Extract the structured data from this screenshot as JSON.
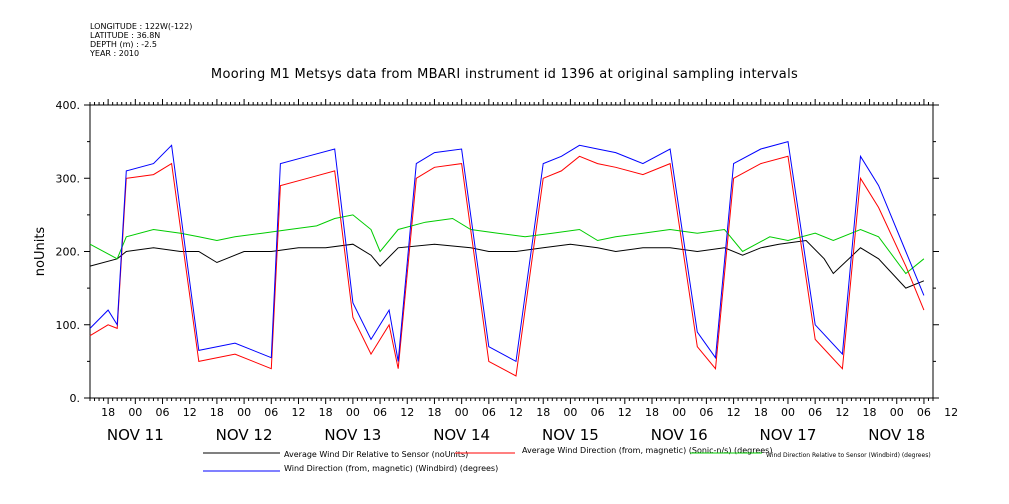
{
  "header": {
    "longitude": "LONGITUDE : 122W(-122)",
    "latitude": "LATITUDE : 36.8N",
    "depth": "DEPTH (m) : -2.5",
    "year": "YEAR : 2010"
  },
  "chart_data": {
    "type": "line",
    "title": "Mooring M1 Metsys data from MBARI instrument id 1396 at original sampling intervals",
    "ylabel": "noUnits",
    "xlabel": "",
    "ylim": [
      0,
      400
    ],
    "y_ticks": [
      "0.",
      "100.",
      "200.",
      "300.",
      "400."
    ],
    "x_range_hours": [
      -4,
      182
    ],
    "hour_tick_labels": [
      "18",
      "00",
      "06",
      "12",
      "18",
      "00",
      "06",
      "12",
      "18",
      "00",
      "06",
      "12",
      "18",
      "00",
      "06",
      "12",
      "18",
      "00",
      "06",
      "12",
      "18",
      "00",
      "06",
      "12",
      "18",
      "00",
      "06",
      "12",
      "18",
      "00",
      "06",
      "12"
    ],
    "day_labels": [
      "NOV 11",
      "NOV 12",
      "NOV 13",
      "NOV 14",
      "NOV 15",
      "NOV 16",
      "NOV 17",
      "NOV 18"
    ],
    "grid": false,
    "legend_placement": "bottom",
    "series": [
      {
        "name": "Average Wind Dir Relative to Sensor (noUnits)",
        "color": "#000000",
        "points": [
          [
            -4,
            180
          ],
          [
            2,
            190
          ],
          [
            4,
            200
          ],
          [
            10,
            205
          ],
          [
            16,
            200
          ],
          [
            20,
            200
          ],
          [
            24,
            185
          ],
          [
            26,
            190
          ],
          [
            30,
            200
          ],
          [
            36,
            200
          ],
          [
            42,
            205
          ],
          [
            48,
            205
          ],
          [
            54,
            210
          ],
          [
            58,
            195
          ],
          [
            60,
            180
          ],
          [
            64,
            205
          ],
          [
            72,
            210
          ],
          [
            80,
            205
          ],
          [
            84,
            200
          ],
          [
            90,
            200
          ],
          [
            96,
            205
          ],
          [
            102,
            210
          ],
          [
            108,
            205
          ],
          [
            112,
            200
          ],
          [
            118,
            205
          ],
          [
            124,
            205
          ],
          [
            130,
            200
          ],
          [
            136,
            205
          ],
          [
            140,
            195
          ],
          [
            144,
            205
          ],
          [
            148,
            210
          ],
          [
            154,
            215
          ],
          [
            158,
            190
          ],
          [
            160,
            170
          ],
          [
            166,
            205
          ],
          [
            170,
            190
          ],
          [
            176,
            150
          ],
          [
            180,
            160
          ]
        ]
      },
      {
        "name": "Average Wind Direction (from, magnetic) (Sonic-n/s) (degrees)",
        "color": "#ff0000",
        "points": [
          [
            -4,
            85
          ],
          [
            0,
            100
          ],
          [
            2,
            95
          ],
          [
            4,
            300
          ],
          [
            10,
            305
          ],
          [
            14,
            320
          ],
          [
            20,
            50
          ],
          [
            28,
            60
          ],
          [
            36,
            40
          ],
          [
            38,
            290
          ],
          [
            44,
            300
          ],
          [
            50,
            310
          ],
          [
            54,
            110
          ],
          [
            58,
            60
          ],
          [
            62,
            100
          ],
          [
            64,
            40
          ],
          [
            68,
            300
          ],
          [
            72,
            315
          ],
          [
            78,
            320
          ],
          [
            84,
            50
          ],
          [
            90,
            30
          ],
          [
            96,
            300
          ],
          [
            100,
            310
          ],
          [
            104,
            330
          ],
          [
            108,
            320
          ],
          [
            112,
            315
          ],
          [
            118,
            305
          ],
          [
            124,
            320
          ],
          [
            130,
            70
          ],
          [
            134,
            40
          ],
          [
            138,
            300
          ],
          [
            144,
            320
          ],
          [
            150,
            330
          ],
          [
            156,
            80
          ],
          [
            162,
            40
          ],
          [
            166,
            300
          ],
          [
            170,
            260
          ],
          [
            176,
            180
          ],
          [
            180,
            120
          ]
        ]
      },
      {
        "name": "Wind Direction Relative to Sensor (Windbird) (degrees)",
        "color": "#00cc00",
        "points": [
          [
            -4,
            210
          ],
          [
            2,
            190
          ],
          [
            4,
            220
          ],
          [
            10,
            230
          ],
          [
            16,
            225
          ],
          [
            20,
            220
          ],
          [
            24,
            215
          ],
          [
            28,
            220
          ],
          [
            34,
            225
          ],
          [
            40,
            230
          ],
          [
            46,
            235
          ],
          [
            50,
            245
          ],
          [
            54,
            250
          ],
          [
            58,
            230
          ],
          [
            60,
            200
          ],
          [
            64,
            230
          ],
          [
            70,
            240
          ],
          [
            76,
            245
          ],
          [
            80,
            230
          ],
          [
            86,
            225
          ],
          [
            92,
            220
          ],
          [
            98,
            225
          ],
          [
            104,
            230
          ],
          [
            108,
            215
          ],
          [
            112,
            220
          ],
          [
            118,
            225
          ],
          [
            124,
            230
          ],
          [
            130,
            225
          ],
          [
            136,
            230
          ],
          [
            140,
            200
          ],
          [
            146,
            220
          ],
          [
            150,
            215
          ],
          [
            156,
            225
          ],
          [
            160,
            215
          ],
          [
            166,
            230
          ],
          [
            170,
            220
          ],
          [
            176,
            170
          ],
          [
            180,
            190
          ]
        ]
      },
      {
        "name": "Wind Direction (from, magnetic) (Windbird) (degrees)",
        "color": "#0000ff",
        "points": [
          [
            -4,
            95
          ],
          [
            0,
            120
          ],
          [
            2,
            100
          ],
          [
            4,
            310
          ],
          [
            10,
            320
          ],
          [
            14,
            345
          ],
          [
            20,
            65
          ],
          [
            28,
            75
          ],
          [
            36,
            55
          ],
          [
            38,
            320
          ],
          [
            44,
            330
          ],
          [
            50,
            340
          ],
          [
            54,
            130
          ],
          [
            58,
            80
          ],
          [
            62,
            120
          ],
          [
            64,
            50
          ],
          [
            68,
            320
          ],
          [
            72,
            335
          ],
          [
            78,
            340
          ],
          [
            84,
            70
          ],
          [
            90,
            50
          ],
          [
            96,
            320
          ],
          [
            100,
            330
          ],
          [
            104,
            345
          ],
          [
            108,
            340
          ],
          [
            112,
            335
          ],
          [
            118,
            320
          ],
          [
            124,
            340
          ],
          [
            130,
            90
          ],
          [
            134,
            55
          ],
          [
            138,
            320
          ],
          [
            144,
            340
          ],
          [
            150,
            350
          ],
          [
            156,
            100
          ],
          [
            162,
            60
          ],
          [
            166,
            330
          ],
          [
            170,
            290
          ],
          [
            176,
            200
          ],
          [
            180,
            140
          ]
        ]
      }
    ]
  }
}
